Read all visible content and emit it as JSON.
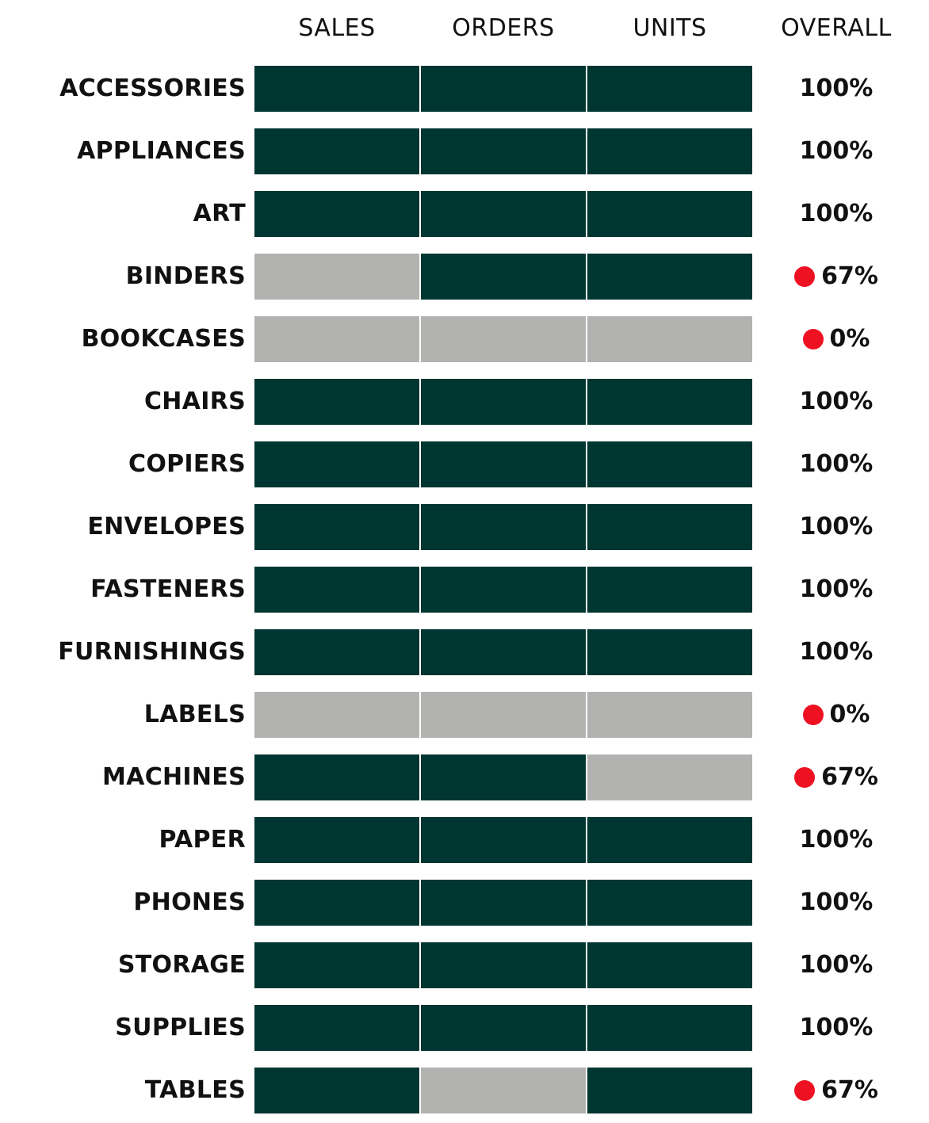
{
  "colors": {
    "met": "#003631",
    "missed": "#b2b3b1",
    "flag": "#ee1122",
    "text": "#111111"
  },
  "chart_data": {
    "type": "table",
    "columns": [
      "SALES",
      "ORDERS",
      "UNITS"
    ],
    "overall_label": "OVERALL",
    "rows": [
      {
        "category": "ACCESSORIES",
        "sales": 1,
        "orders": 1,
        "units": 1,
        "overall": "100%",
        "flag": false
      },
      {
        "category": "APPLIANCES",
        "sales": 1,
        "orders": 1,
        "units": 1,
        "overall": "100%",
        "flag": false
      },
      {
        "category": "ART",
        "sales": 1,
        "orders": 1,
        "units": 1,
        "overall": "100%",
        "flag": false
      },
      {
        "category": "BINDERS",
        "sales": 0,
        "orders": 1,
        "units": 1,
        "overall": "67%",
        "flag": true
      },
      {
        "category": "BOOKCASES",
        "sales": 0,
        "orders": 0,
        "units": 0,
        "overall": "0%",
        "flag": true
      },
      {
        "category": "CHAIRS",
        "sales": 1,
        "orders": 1,
        "units": 1,
        "overall": "100%",
        "flag": false
      },
      {
        "category": "COPIERS",
        "sales": 1,
        "orders": 1,
        "units": 1,
        "overall": "100%",
        "flag": false
      },
      {
        "category": "ENVELOPES",
        "sales": 1,
        "orders": 1,
        "units": 1,
        "overall": "100%",
        "flag": false
      },
      {
        "category": "FASTENERS",
        "sales": 1,
        "orders": 1,
        "units": 1,
        "overall": "100%",
        "flag": false
      },
      {
        "category": "FURNISHINGS",
        "sales": 1,
        "orders": 1,
        "units": 1,
        "overall": "100%",
        "flag": false
      },
      {
        "category": "LABELS",
        "sales": 0,
        "orders": 0,
        "units": 0,
        "overall": "0%",
        "flag": true
      },
      {
        "category": "MACHINES",
        "sales": 1,
        "orders": 1,
        "units": 0,
        "overall": "67%",
        "flag": true
      },
      {
        "category": "PAPER",
        "sales": 1,
        "orders": 1,
        "units": 1,
        "overall": "100%",
        "flag": false
      },
      {
        "category": "PHONES",
        "sales": 1,
        "orders": 1,
        "units": 1,
        "overall": "100%",
        "flag": false
      },
      {
        "category": "STORAGE",
        "sales": 1,
        "orders": 1,
        "units": 1,
        "overall": "100%",
        "flag": false
      },
      {
        "category": "SUPPLIES",
        "sales": 1,
        "orders": 1,
        "units": 1,
        "overall": "100%",
        "flag": false
      },
      {
        "category": "TABLES",
        "sales": 1,
        "orders": 0,
        "units": 1,
        "overall": "67%",
        "flag": true
      }
    ]
  }
}
